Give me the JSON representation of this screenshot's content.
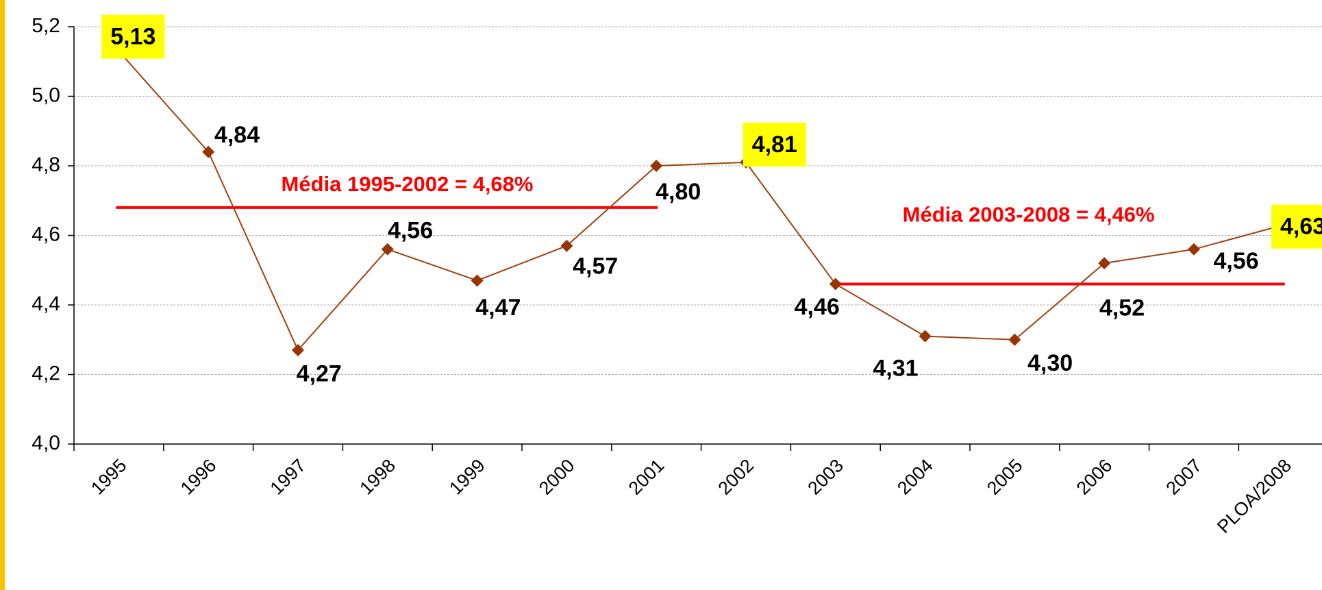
{
  "chart_data": {
    "type": "line",
    "categories": [
      "1995",
      "1996",
      "1997",
      "1998",
      "1999",
      "2000",
      "2001",
      "2002",
      "2003",
      "2004",
      "2005",
      "2006",
      "2007",
      "PLOA/2008"
    ],
    "series": [
      {
        "color": "#a0400f",
        "marker_color": "#993300",
        "values": [
          5.13,
          4.84,
          4.27,
          4.56,
          4.47,
          4.57,
          4.8,
          4.81,
          4.46,
          4.31,
          4.3,
          4.52,
          4.56,
          4.63
        ],
        "value_labels": [
          "5,13",
          "4,84",
          "4,27",
          "4,56",
          "4,47",
          "4,57",
          "4,80",
          "4,81",
          "4,46",
          "4,31",
          "4,30",
          "4,52",
          "4,56",
          "4,63"
        ]
      }
    ],
    "label_highlight": [
      0,
      7,
      13
    ],
    "highlight_color": "#ffff00",
    "ylim": [
      4.0,
      5.2
    ],
    "yticks": [
      {
        "value": 4.0,
        "label": "4,0"
      },
      {
        "value": 4.2,
        "label": "4,2"
      },
      {
        "value": 4.4,
        "label": "4,4"
      },
      {
        "value": 4.6,
        "label": "4,6"
      },
      {
        "value": 4.8,
        "label": "4,8"
      },
      {
        "value": 5.0,
        "label": "5,0"
      },
      {
        "value": 5.2,
        "label": "5,2"
      }
    ],
    "grid": true,
    "annotations": [
      {
        "text": "Média 1995-2002 = 4,68%",
        "value": 4.68,
        "from": "1995",
        "to": "2001",
        "color": "#ff0000"
      },
      {
        "text": "Média 2003-2008 = 4,46%",
        "value": 4.46,
        "from": "2003",
        "to": "PLOA/2008",
        "color": "#ff0000"
      }
    ]
  }
}
